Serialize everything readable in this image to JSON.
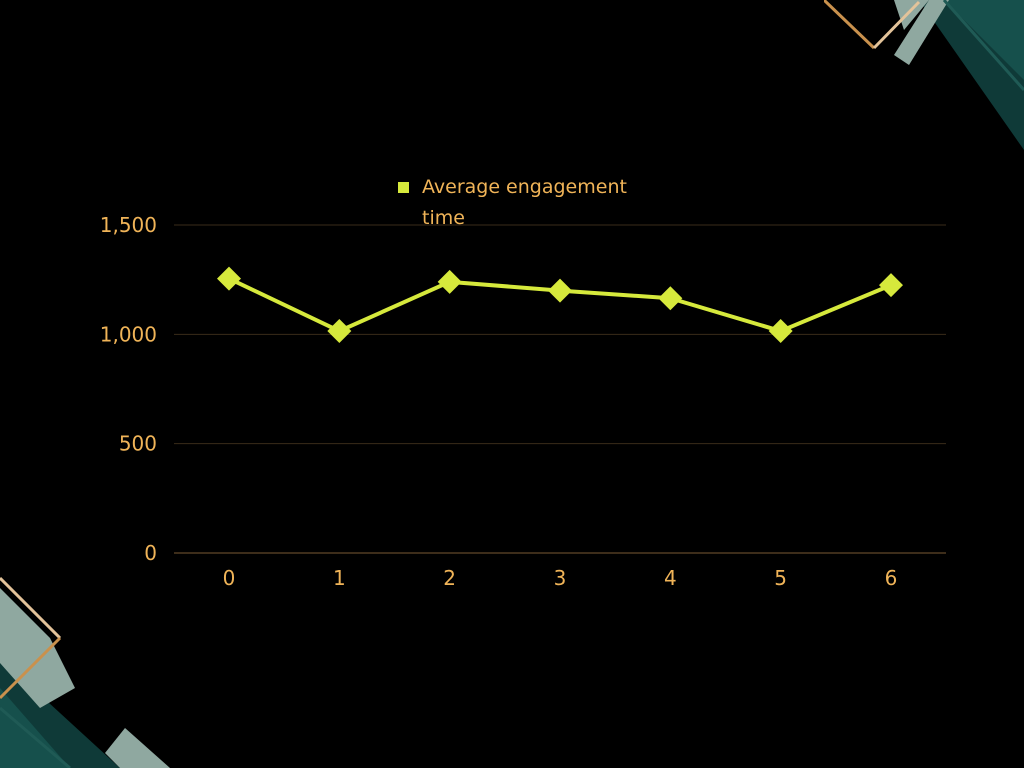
{
  "chart_data": {
    "type": "line",
    "x": [
      0,
      1,
      2,
      3,
      4,
      5,
      6
    ],
    "series": [
      {
        "name": "Average engagement time",
        "values": [
          1255,
          1015,
          1240,
          1200,
          1165,
          1015,
          1225
        ]
      }
    ],
    "ylim": [
      0,
      1500
    ],
    "y_ticks": [
      0,
      500,
      1000,
      1500
    ],
    "y_tick_labels": [
      "0",
      "500",
      "1,000",
      "1,500"
    ],
    "x_tick_labels": [
      "0",
      "1",
      "2",
      "3",
      "4",
      "5",
      "6"
    ],
    "grid": "horizontal",
    "legend_position": "top-center",
    "legend_lines": [
      "Average engagement",
      "time"
    ]
  },
  "colors": {
    "background": "#000000",
    "series": "#d6e93c",
    "text": "#f0b458",
    "gridline": "#3a2b1a",
    "baseline": "#7a5a33"
  }
}
